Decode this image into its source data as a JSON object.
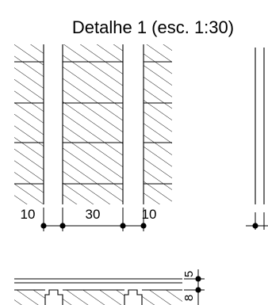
{
  "title": "Detalhe 1 (esc. 1:30)",
  "plan_dimensions": [
    "10",
    "30",
    "10"
  ],
  "section_dimensions": [
    "5",
    "8"
  ]
}
